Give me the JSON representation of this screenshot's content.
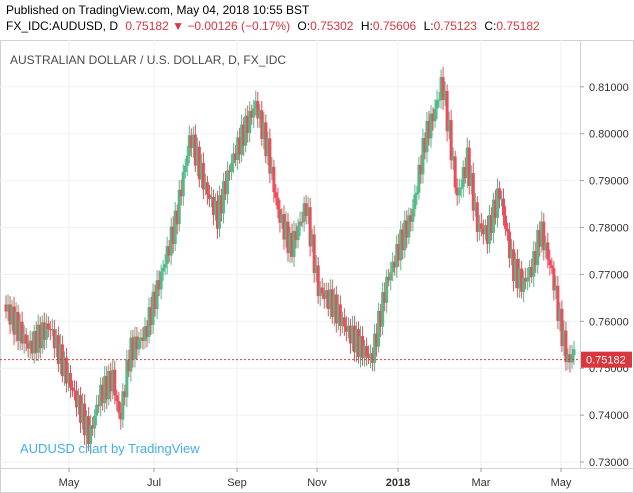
{
  "header": {
    "published": "Published on TradingView.com, May 04, 2018 10:55 BST",
    "symbol": "FX_IDC:AUDUSD, D",
    "last": "0.75182",
    "change": "−0.00126 (−0.17%)",
    "open_label": "O:",
    "open": "0.75302",
    "high_label": "H:",
    "high": "0.75606",
    "low_label": "L:",
    "low": "0.75123",
    "close_label": "C:",
    "close": "0.75182"
  },
  "chart_data": {
    "type": "candlestick",
    "title": "AUSTRALIAN DOLLAR / U.S. DOLLAR, D, FX_IDC",
    "watermark": "AUDUSD chart by TradingView",
    "x_ticks": [
      "May",
      "Jul",
      "Sep",
      "Nov",
      "2018",
      "Mar",
      "May"
    ],
    "y_ticks": [
      "0.73000",
      "0.74000",
      "0.75000",
      "0.76000",
      "0.77000",
      "0.78000",
      "0.79000",
      "0.80000",
      "0.81000"
    ],
    "ylim": [
      0.7285,
      0.8155
    ],
    "last_price": 0.75182,
    "last_price_label": "0.75182",
    "grid": true,
    "colors": {
      "up": "#53b987",
      "down": "#eb4d5c",
      "grid": "#eef0f2",
      "price_line": "#d9363e"
    },
    "series": [
      {
        "t": 0,
        "c": 0.762
      },
      {
        "t": 25,
        "c": 0.753
      },
      {
        "t": 45,
        "c": 0.758
      },
      {
        "t": 60,
        "c": 0.749
      },
      {
        "t": 75,
        "c": 0.741
      },
      {
        "t": 85,
        "c": 0.735
      },
      {
        "t": 95,
        "c": 0.744
      },
      {
        "t": 108,
        "c": 0.748
      },
      {
        "t": 115,
        "c": 0.739
      },
      {
        "t": 125,
        "c": 0.754
      },
      {
        "t": 140,
        "c": 0.758
      },
      {
        "t": 155,
        "c": 0.77
      },
      {
        "t": 170,
        "c": 0.782
      },
      {
        "t": 185,
        "c": 0.801
      },
      {
        "t": 200,
        "c": 0.79
      },
      {
        "t": 212,
        "c": 0.784
      },
      {
        "t": 225,
        "c": 0.795
      },
      {
        "t": 240,
        "c": 0.803
      },
      {
        "t": 250,
        "c": 0.808
      },
      {
        "t": 262,
        "c": 0.798
      },
      {
        "t": 272,
        "c": 0.785
      },
      {
        "t": 285,
        "c": 0.777
      },
      {
        "t": 300,
        "c": 0.786
      },
      {
        "t": 312,
        "c": 0.768
      },
      {
        "t": 325,
        "c": 0.765
      },
      {
        "t": 340,
        "c": 0.759
      },
      {
        "t": 350,
        "c": 0.756
      },
      {
        "t": 365,
        "c": 0.752
      },
      {
        "t": 380,
        "c": 0.768
      },
      {
        "t": 395,
        "c": 0.777
      },
      {
        "t": 405,
        "c": 0.782
      },
      {
        "t": 418,
        "c": 0.798
      },
      {
        "t": 428,
        "c": 0.804
      },
      {
        "t": 435,
        "c": 0.81
      },
      {
        "t": 442,
        "c": 0.799
      },
      {
        "t": 450,
        "c": 0.785
      },
      {
        "t": 460,
        "c": 0.793
      },
      {
        "t": 470,
        "c": 0.779
      },
      {
        "t": 480,
        "c": 0.777
      },
      {
        "t": 492,
        "c": 0.786
      },
      {
        "t": 505,
        "c": 0.77
      },
      {
        "t": 515,
        "c": 0.766
      },
      {
        "t": 525,
        "c": 0.77
      },
      {
        "t": 533,
        "c": 0.778
      },
      {
        "t": 545,
        "c": 0.768
      },
      {
        "t": 553,
        "c": 0.757
      },
      {
        "t": 560,
        "c": 0.75
      },
      {
        "t": 566,
        "c": 0.752
      }
    ]
  }
}
